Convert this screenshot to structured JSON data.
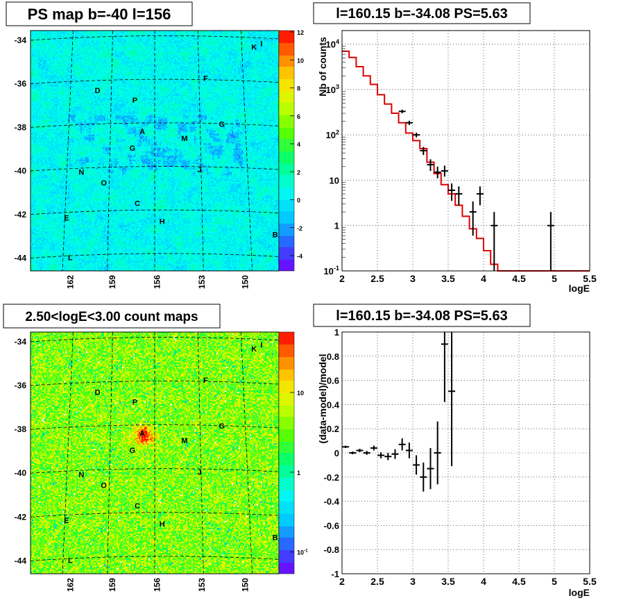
{
  "panels": {
    "ps_map": {
      "title": "PS map b=-40 l=156",
      "y_ticks": [
        "-34",
        "-36",
        "-38",
        "-40",
        "-42",
        "-44"
      ],
      "x_ticks": [
        "162",
        "159",
        "156",
        "153",
        "150"
      ],
      "colorbar_ticks": [
        "12",
        "10",
        "8",
        "6",
        "4",
        "2",
        "0",
        "-2",
        "-4"
      ],
      "sources": [
        "K",
        "I",
        "F",
        "D",
        "P",
        "G",
        "A",
        "M",
        "G",
        "J",
        "N",
        "O",
        "C",
        "E",
        "H",
        "B",
        "L"
      ]
    },
    "count_map": {
      "title": "2.50<logE<3.00 count maps",
      "y_ticks": [
        "-34",
        "-36",
        "-38",
        "-40",
        "-42",
        "-44"
      ],
      "x_ticks": [
        "162",
        "159",
        "156",
        "153",
        "150"
      ],
      "colorbar_ticks": [
        "10",
        "1",
        "10-1"
      ],
      "sources": [
        "K",
        "I",
        "F",
        "D",
        "P",
        "G",
        "A",
        "M",
        "G",
        "J",
        "N",
        "O",
        "C",
        "E",
        "H",
        "B",
        "L"
      ]
    },
    "spectrum": {
      "title": "l=160.15 b=-34.08 PS=5.63"
    },
    "residual": {
      "title": "l=160.15 b=-34.08 PS=5.63"
    }
  },
  "chart_data": [
    {
      "type": "heatmap",
      "title": "PS map b=-40 l=156",
      "x_ticks": [
        162,
        159,
        156,
        153,
        150
      ],
      "y_ticks": [
        -34,
        -36,
        -38,
        -40,
        -42,
        -44
      ],
      "color_range": [
        -5,
        12
      ],
      "colorbar_ticks": [
        12,
        10,
        8,
        6,
        4,
        2,
        0,
        -2,
        -4
      ]
    },
    {
      "type": "line",
      "title": "l=160.15 b=-34.08 PS=5.63",
      "xlabel": "logE",
      "ylabel": "Nb of counts",
      "xlim": [
        2,
        5.5
      ],
      "ylim": [
        0.1,
        20000
      ],
      "yscale": "log",
      "x_ticks": [
        "2",
        "2.5",
        "3",
        "3.5",
        "4",
        "4.5",
        "5",
        "5.5"
      ],
      "y_ticks": [
        "10-1",
        "1",
        "10",
        "102",
        "103",
        "104"
      ],
      "grid": true,
      "series": [
        {
          "style": "step",
          "color": "#dd0000",
          "bin_edges": [
            2.0,
            2.1,
            2.2,
            2.3,
            2.4,
            2.5,
            2.6,
            2.7,
            2.8,
            2.9,
            3.0,
            3.1,
            3.2,
            3.3,
            3.4,
            3.5,
            3.6,
            3.7,
            3.8,
            3.9,
            4.0,
            4.1,
            4.2,
            4.3,
            4.4,
            4.5,
            4.6,
            4.7,
            4.8,
            4.9,
            5.0,
            5.1,
            5.2,
            5.3,
            5.4,
            5.5
          ],
          "values": [
            7000,
            5100,
            3200,
            2000,
            1300,
            770,
            480,
            300,
            185,
            110,
            75,
            50,
            25,
            14,
            8,
            5,
            2.8,
            1.6,
            0.85,
            0.52,
            0.28,
            0.14,
            0.1,
            0.1,
            0.1,
            0.1,
            0.1,
            0.1,
            0.1,
            0.1,
            0.1,
            0.1,
            0.1,
            0.1,
            0.1
          ]
        },
        {
          "style": "errorbar",
          "color": "#000000",
          "points": [
            {
              "x": 2.85,
              "y": 330,
              "lo": 300,
              "hi": 360
            },
            {
              "x": 2.95,
              "y": 185,
              "lo": 165,
              "hi": 205
            },
            {
              "x": 3.05,
              "y": 100,
              "lo": 88,
              "hi": 112
            },
            {
              "x": 3.15,
              "y": 45,
              "lo": 36,
              "hi": 54
            },
            {
              "x": 3.25,
              "y": 22,
              "lo": 16,
              "hi": 29
            },
            {
              "x": 3.35,
              "y": 15,
              "lo": 11,
              "hi": 20
            },
            {
              "x": 3.45,
              "y": 16,
              "lo": 12,
              "hi": 21
            },
            {
              "x": 3.55,
              "y": 6,
              "lo": 3.5,
              "hi": 8.5
            },
            {
              "x": 3.65,
              "y": 5,
              "lo": 2.8,
              "hi": 7.3
            },
            {
              "x": 3.85,
              "y": 2,
              "lo": 0.6,
              "hi": 3.4
            },
            {
              "x": 3.95,
              "y": 5,
              "lo": 2.8,
              "hi": 7.3
            },
            {
              "x": 4.15,
              "y": 1,
              "lo": 0.1,
              "hi": 2
            },
            {
              "x": 4.95,
              "y": 1,
              "lo": 0.1,
              "hi": 2
            }
          ]
        }
      ]
    },
    {
      "type": "heatmap",
      "title": "2.50<logE<3.00 count maps",
      "x_ticks": [
        162,
        159,
        156,
        153,
        150
      ],
      "y_ticks": [
        -34,
        -36,
        -38,
        -40,
        -42,
        -44
      ],
      "color_scale": "log",
      "colorbar_ticks": [
        "10",
        "1",
        "10-1"
      ]
    },
    {
      "type": "scatter",
      "title": "l=160.15 b=-34.08 PS=5.63",
      "xlabel": "logE",
      "ylabel": "(data-model)/model",
      "xlim": [
        2,
        5.5
      ],
      "ylim": [
        -1,
        1
      ],
      "x_ticks": [
        "2",
        "2.5",
        "3",
        "3.5",
        "4",
        "4.5",
        "5",
        "5.5"
      ],
      "y_ticks": [
        "1",
        "0.8",
        "0.6",
        "0.4",
        "0.2",
        "0",
        "-0.2",
        "-0.4",
        "-0.6",
        "-0.8",
        "-1"
      ],
      "grid": true,
      "series": [
        {
          "style": "errorbar",
          "color": "#000000",
          "points": [
            {
              "x": 2.05,
              "y": 0.05,
              "err": 0.01
            },
            {
              "x": 2.15,
              "y": 0.0,
              "err": 0.012
            },
            {
              "x": 2.25,
              "y": 0.02,
              "err": 0.014
            },
            {
              "x": 2.35,
              "y": 0.0,
              "err": 0.016
            },
            {
              "x": 2.45,
              "y": 0.04,
              "err": 0.02
            },
            {
              "x": 2.55,
              "y": -0.02,
              "err": 0.025
            },
            {
              "x": 2.65,
              "y": -0.03,
              "err": 0.03
            },
            {
              "x": 2.75,
              "y": -0.01,
              "err": 0.04
            },
            {
              "x": 2.85,
              "y": 0.07,
              "err": 0.05
            },
            {
              "x": 2.95,
              "y": 0.02,
              "err": 0.065
            },
            {
              "x": 3.05,
              "y": -0.1,
              "err": 0.08
            },
            {
              "x": 3.15,
              "y": -0.2,
              "err": 0.12
            },
            {
              "x": 3.25,
              "y": -0.13,
              "err": 0.17
            },
            {
              "x": 3.35,
              "y": 0.0,
              "err": 0.26
            },
            {
              "x": 3.45,
              "y": 0.9,
              "err": 0.48
            },
            {
              "x": 3.55,
              "y": 0.51,
              "err": 0.62
            }
          ]
        }
      ]
    }
  ]
}
